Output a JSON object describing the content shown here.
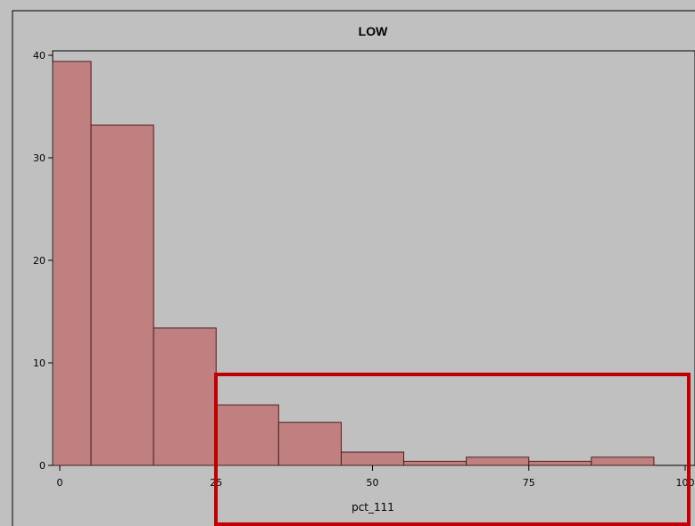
{
  "chart_data": {
    "type": "bar",
    "title": "LOW",
    "xlabel": "pct_111",
    "ylabel": "",
    "bin_edges": [
      -5,
      5,
      15,
      25,
      35,
      45,
      55,
      65,
      75,
      85,
      95
    ],
    "values": [
      39.4,
      33.2,
      13.4,
      5.9,
      4.2,
      1.3,
      0.4,
      0.8,
      0.4,
      0.8
    ],
    "xlim": [
      -2,
      100
    ],
    "ylim": [
      0,
      41
    ],
    "xticks": [
      0,
      25,
      50,
      75,
      100
    ],
    "xtick_labels": [
      "0",
      "25",
      "50",
      "75",
      "100"
    ],
    "yticks": [
      0,
      10,
      20,
      30,
      40
    ],
    "ytick_labels": [
      "0",
      "10",
      "20",
      "30",
      "40"
    ],
    "grid": false,
    "legend": "none",
    "colors": {
      "bar_fill": "#c08080",
      "bar_stroke": "#4a2020",
      "background": "#c0c0c0",
      "highlight_box": "#c00000"
    }
  }
}
